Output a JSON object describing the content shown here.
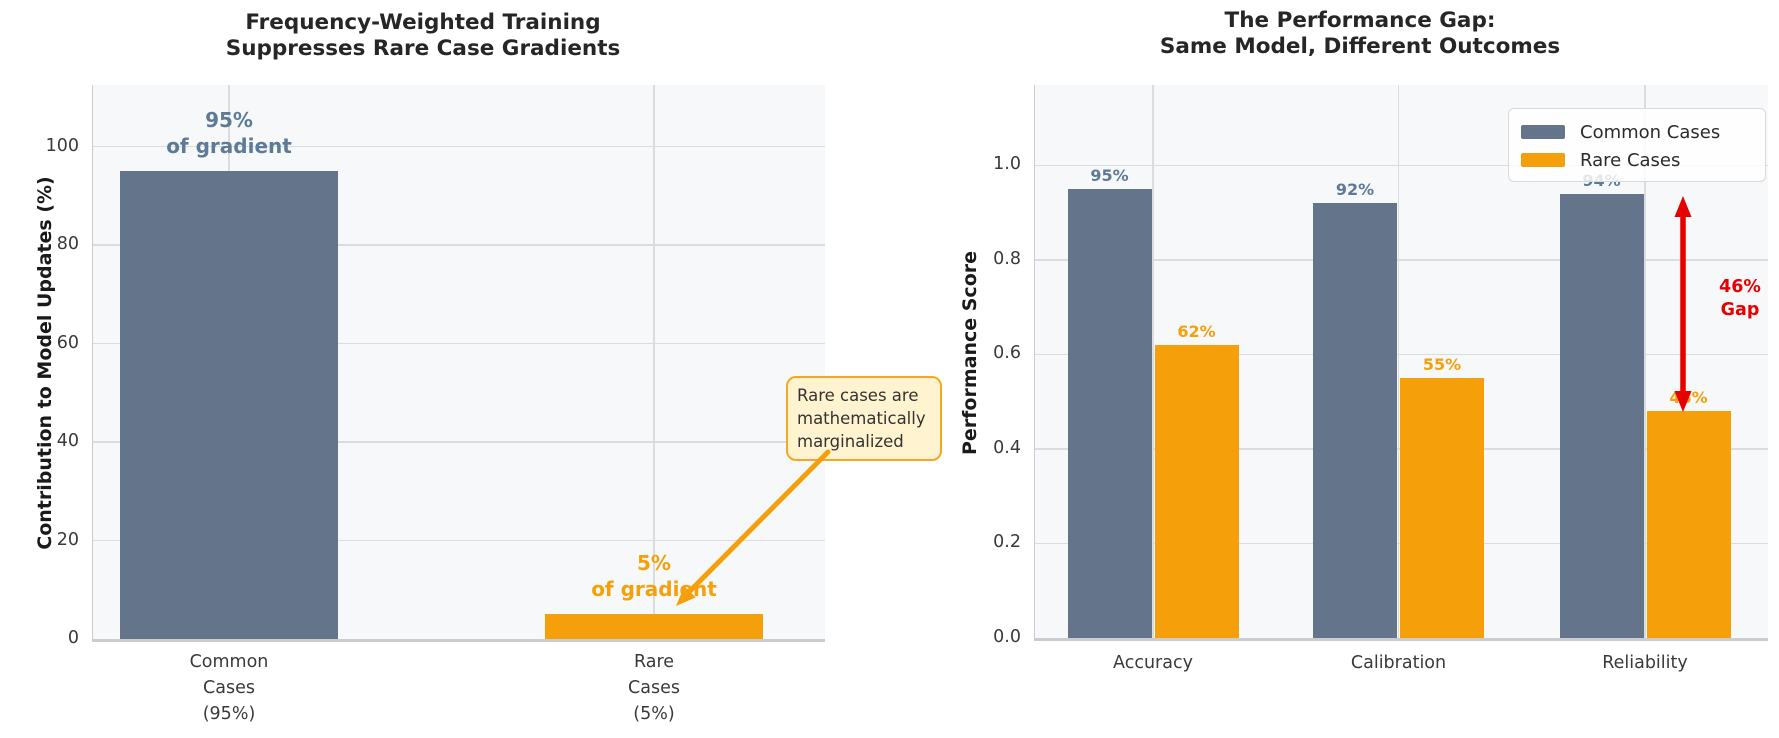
{
  "figure": {
    "background": "#ffffff"
  },
  "chart_data": [
    {
      "type": "bar",
      "title": "Frequency-Weighted Training\nSuppresses Rare Case Gradients",
      "ylabel": "Contribution to Model Updates (%)",
      "ylim": [
        0,
        112.5
      ],
      "grid": true,
      "yticks": {
        "values": [
          0,
          20,
          40,
          60,
          80,
          100
        ],
        "labels": [
          "0",
          "20",
          "40",
          "60",
          "80",
          "100"
        ]
      },
      "categories": [
        "Common\nCases\n(95%)",
        "Rare\nCases\n(5%)"
      ],
      "values": [
        95,
        5
      ],
      "bar_colors": [
        "#64748a",
        "#f5a00b"
      ],
      "bar_value_labels": [
        "95%\nof gradient",
        "5%\nof gradient"
      ],
      "bar_value_label_colors": [
        "#5d7a96",
        "#f5a00b"
      ],
      "callout": {
        "text": "Rare cases are\nmathematically\nmarginalized",
        "fill": "#fff4cf",
        "border_color": "#f5a623",
        "arrow_color": "#f5a00b"
      }
    },
    {
      "type": "bar",
      "title": "The Performance Gap:\nSame Model, Different Outcomes",
      "ylabel": "Performance Score",
      "ylim": [
        0,
        1.17
      ],
      "grid": true,
      "yticks": {
        "values": [
          0,
          0.2,
          0.4,
          0.6,
          0.8,
          1.0
        ],
        "labels": [
          "0.0",
          "0.2",
          "0.4",
          "0.6",
          "0.8",
          "1.0"
        ]
      },
      "categories": [
        "Accuracy",
        "Calibration",
        "Reliability"
      ],
      "series": [
        {
          "name": "Common Cases",
          "color": "#64748a",
          "values": [
            0.95,
            0.92,
            0.94
          ],
          "value_labels": [
            "95%",
            "92%",
            "94%"
          ],
          "label_color": "#5d7a96"
        },
        {
          "name": "Rare Cases",
          "color": "#f5a00b",
          "values": [
            0.62,
            0.55,
            0.48
          ],
          "value_labels": [
            "62%",
            "55%",
            "48%"
          ],
          "label_color": "#f5a00b"
        }
      ],
      "legend": {
        "position": "upper right"
      },
      "gap_annotation": {
        "text": "46%\nGap",
        "color": "#e60000"
      }
    }
  ]
}
